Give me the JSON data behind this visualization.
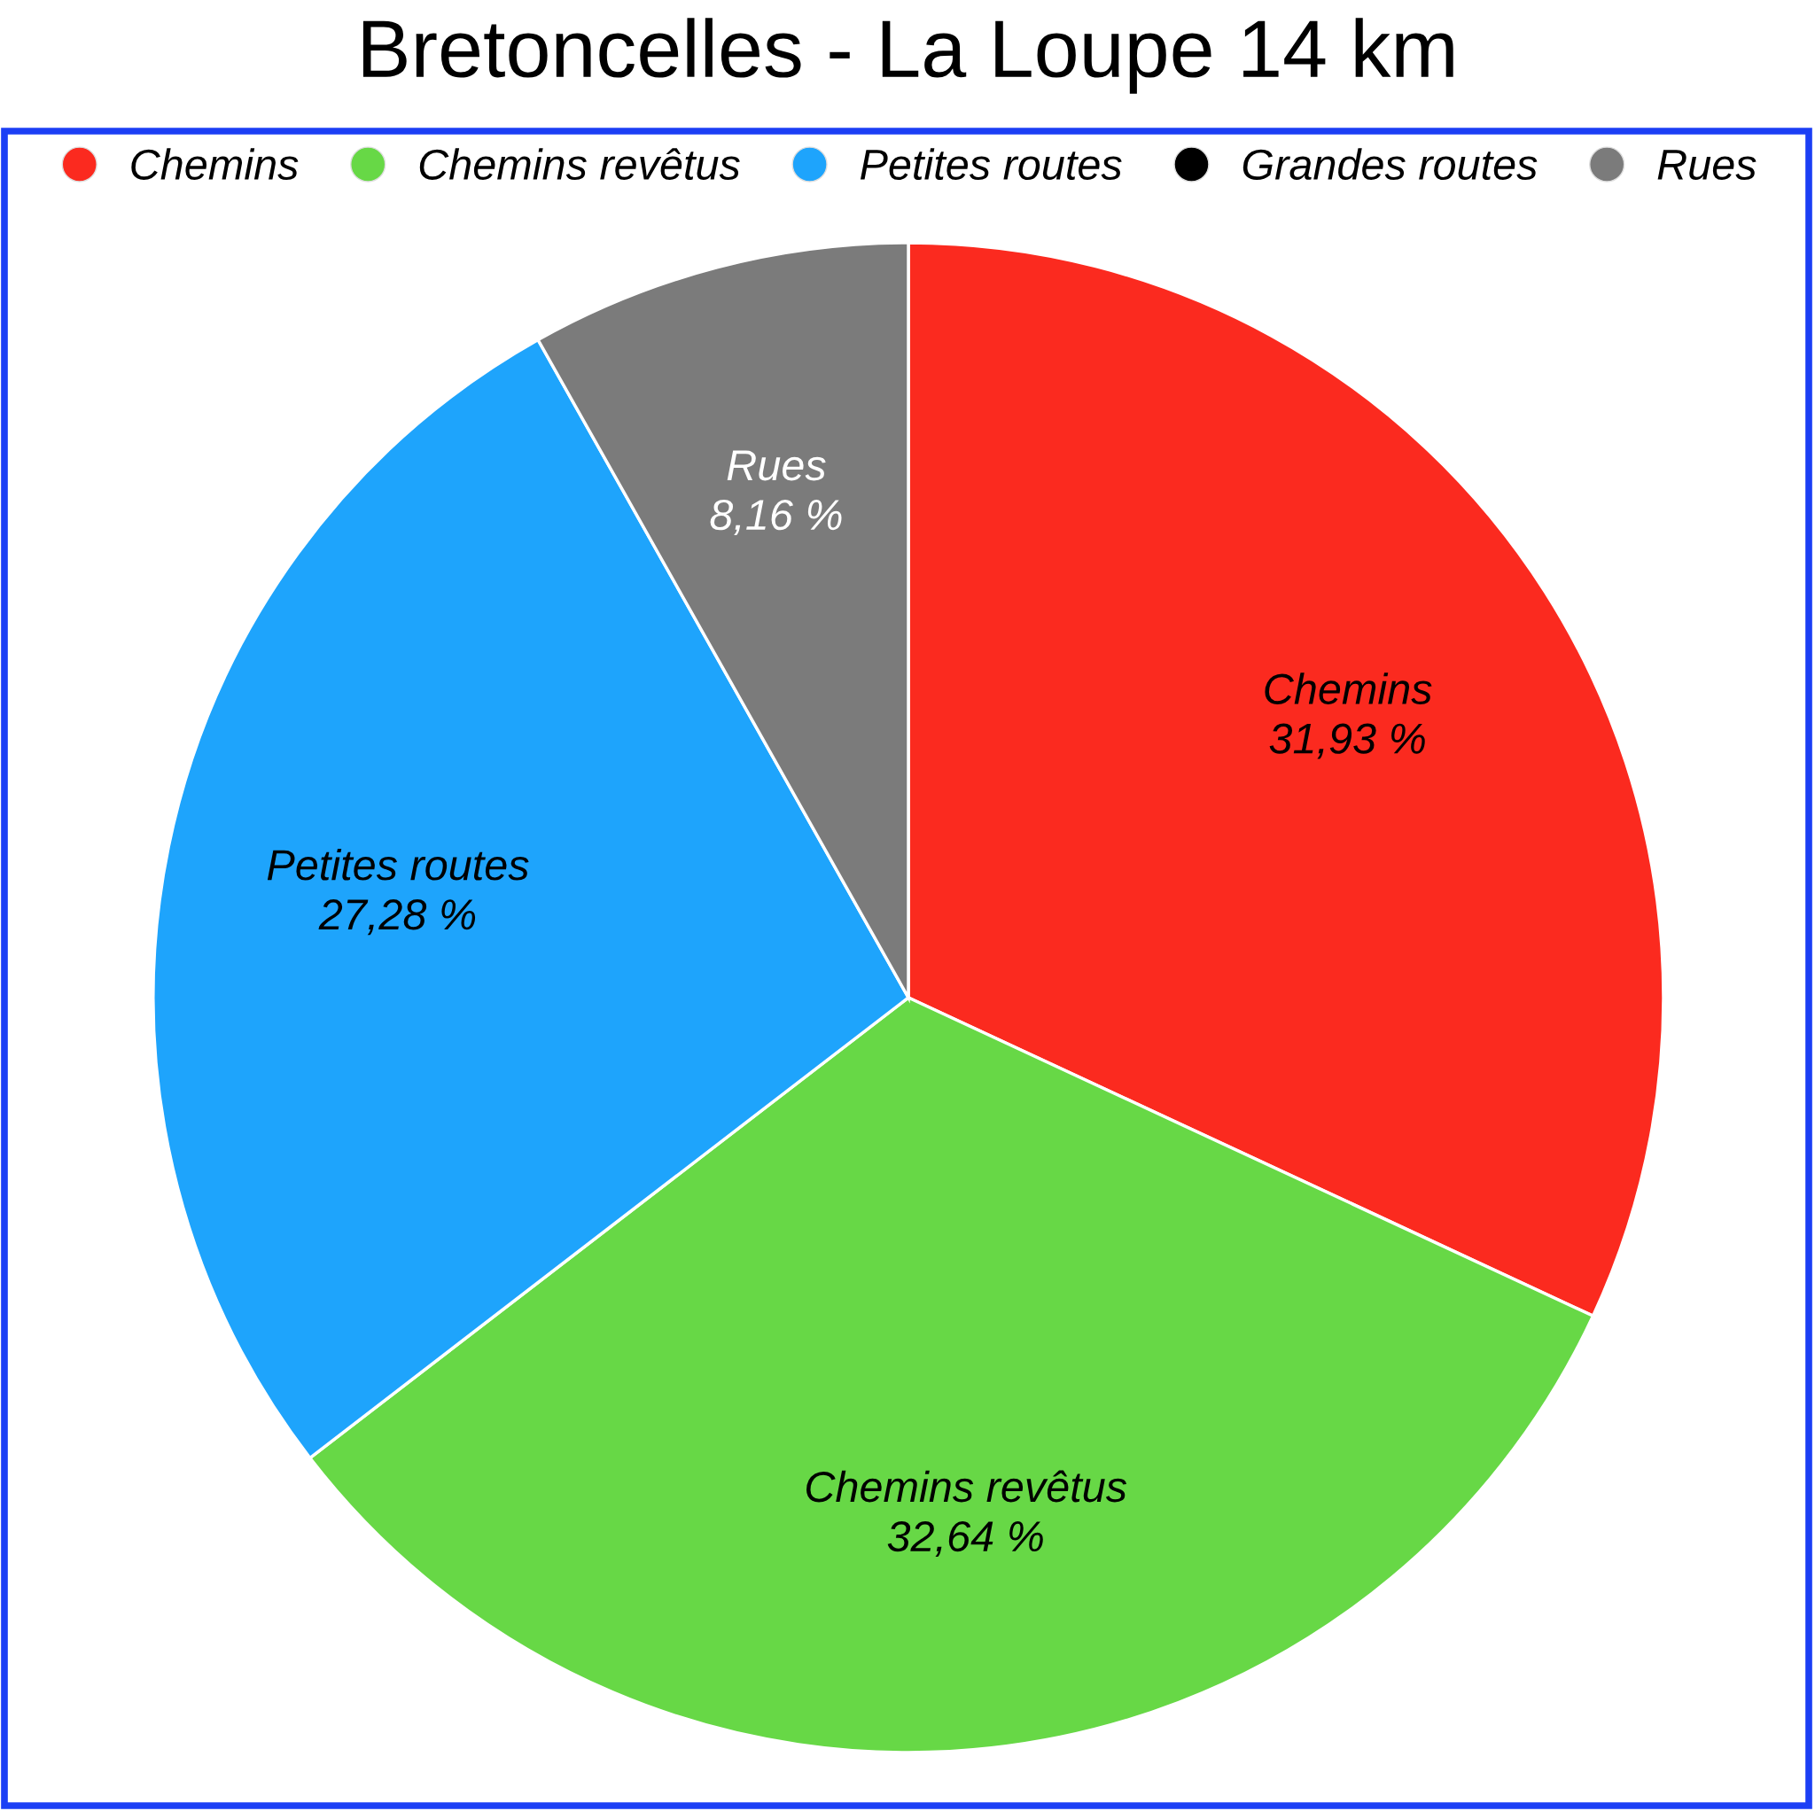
{
  "chart_data": {
    "type": "pie",
    "title": "Bretoncelles - La Loupe 14 km",
    "categories": [
      "Chemins",
      "Chemins revêtus",
      "Petites routes",
      "Grandes routes",
      "Rues"
    ],
    "values": [
      31.93,
      32.64,
      27.28,
      0,
      8.16
    ],
    "colors": [
      "#fb2a1f",
      "#67d846",
      "#1ea4fc",
      "#000000",
      "#7b7b7b"
    ],
    "value_labels": [
      "31,93 %",
      "32,64 %",
      "27,28 %",
      null,
      "8,16 %"
    ],
    "legend": "top"
  }
}
